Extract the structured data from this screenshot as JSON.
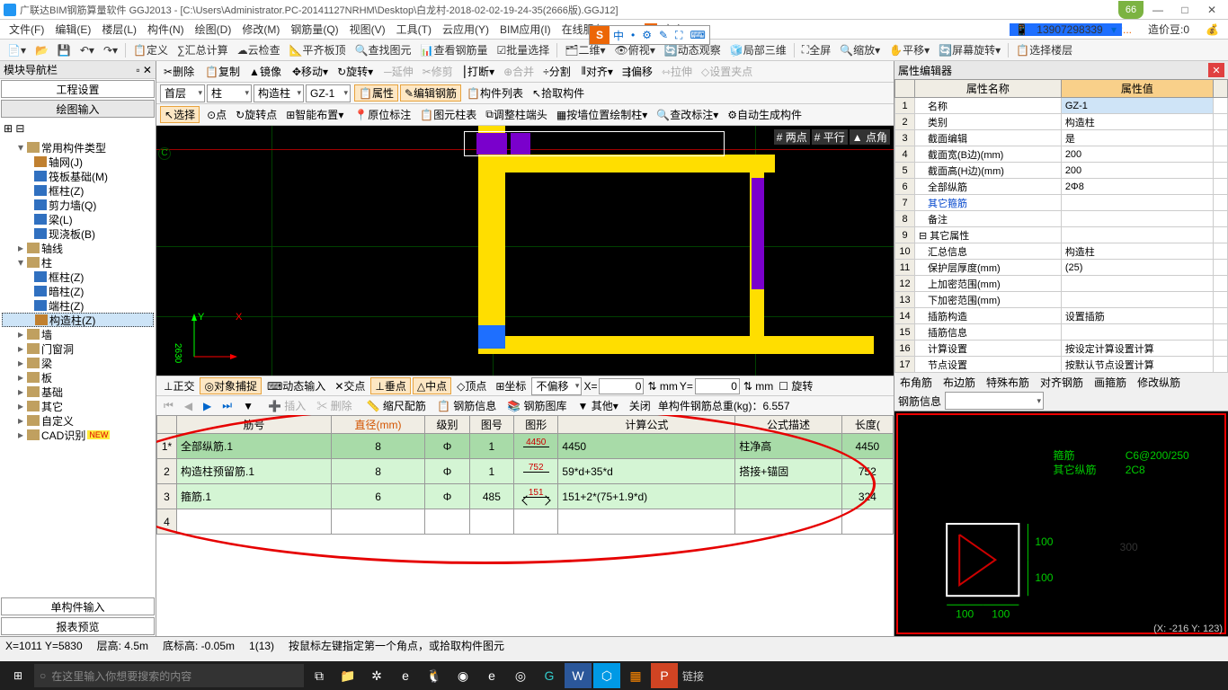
{
  "title": "广联达BIM钢筋算量软件 GGJ2013 - [C:\\Users\\Administrator.PC-20141127NRHM\\Desktop\\白龙村-2018-02-02-19-24-35(2666版).GGJ12]",
  "badge": "66",
  "menu": [
    "文件(F)",
    "编辑(E)",
    "楼层(L)",
    "构件(N)",
    "绘图(D)",
    "修改(M)",
    "钢筋量(Q)",
    "视图(V)",
    "工具(T)",
    "云应用(Y)",
    "BIM应用(I)",
    "在线服务(S)"
  ],
  "menuRight": {
    "orange": "为什么图纸导入不显示...",
    "user": "13907298339",
    "bean": "造价豆:0"
  },
  "tb1": [
    "定义",
    "汇总计算",
    "云检查",
    "平齐板顶",
    "查找图元",
    "查看钢筋量",
    "批量选择",
    "二维",
    "俯视",
    "动态观察",
    "局部三维",
    "全屏",
    "缩放",
    "平移",
    "屏幕旋转",
    "选择楼层"
  ],
  "leftHdr": "模块导航栏",
  "leftTabs": [
    "工程设置",
    "绘图输入"
  ],
  "tree": [
    {
      "t": "常用构件类型",
      "l": 1,
      "exp": "▾"
    },
    {
      "t": "轴网(J)",
      "l": 2,
      "c": "#c08030"
    },
    {
      "t": "筏板基础(M)",
      "l": 2,
      "c": "#3070c0"
    },
    {
      "t": "框柱(Z)",
      "l": 2,
      "c": "#3070c0"
    },
    {
      "t": "剪力墙(Q)",
      "l": 2,
      "c": "#3070c0"
    },
    {
      "t": "梁(L)",
      "l": 2,
      "c": "#3070c0"
    },
    {
      "t": "现浇板(B)",
      "l": 2,
      "c": "#3070c0"
    },
    {
      "t": "轴线",
      "l": 1,
      "exp": "▸"
    },
    {
      "t": "柱",
      "l": 1,
      "exp": "▾"
    },
    {
      "t": "框柱(Z)",
      "l": 2,
      "c": "#3070c0"
    },
    {
      "t": "暗柱(Z)",
      "l": 2,
      "c": "#3070c0"
    },
    {
      "t": "端柱(Z)",
      "l": 2,
      "c": "#3070c0"
    },
    {
      "t": "构造柱(Z)",
      "l": 2,
      "c": "#c08030",
      "sel": true
    },
    {
      "t": "墙",
      "l": 1,
      "exp": "▸"
    },
    {
      "t": "门窗洞",
      "l": 1,
      "exp": "▸"
    },
    {
      "t": "梁",
      "l": 1,
      "exp": "▸"
    },
    {
      "t": "板",
      "l": 1,
      "exp": "▸"
    },
    {
      "t": "基础",
      "l": 1,
      "exp": "▸"
    },
    {
      "t": "其它",
      "l": 1,
      "exp": "▸"
    },
    {
      "t": "自定义",
      "l": 1,
      "exp": "▸"
    },
    {
      "t": "CAD识别",
      "l": 1,
      "exp": "▸",
      "new": true
    }
  ],
  "botTabs": [
    "单构件输入",
    "报表预览"
  ],
  "ctb1": [
    "删除",
    "复制",
    "镜像",
    "移动",
    "旋转",
    "延伸",
    "修剪",
    "打断",
    "合并",
    "分割",
    "对齐",
    "偏移",
    "拉伸",
    "设置夹点"
  ],
  "combos": {
    "floor": "首层",
    "cat": "柱",
    "type": "构造柱",
    "name": "GZ-1"
  },
  "ctb2": [
    "属性",
    "编辑钢筋",
    "构件列表",
    "拾取构件"
  ],
  "ctb3": [
    "选择",
    "点",
    "旋转点",
    "智能布置",
    "原位标注",
    "图元柱表",
    "调整柱端头",
    "按墙位置绘制柱",
    "查改标注",
    "自动生成构件"
  ],
  "snap": [
    "正交",
    "对象捕捉",
    "动态输入",
    "交点",
    "垂点",
    "中点",
    "顶点",
    "坐标"
  ],
  "snapCombo": "不偏移",
  "coords": {
    "x": "0",
    "y": "0"
  },
  "viewR": [
    "两点",
    "平行",
    "点角"
  ],
  "rbar": [
    "插入",
    "删除",
    "缩尺配筋",
    "钢筋信息",
    "钢筋图库",
    "其他",
    "关闭"
  ],
  "weight": "单构件钢筋总重(kg)：6.557",
  "rth": [
    "",
    "筋号",
    "直径(mm)",
    "级别",
    "图号",
    "图形",
    "计算公式",
    "公式描述",
    "长度("
  ],
  "rrows": [
    {
      "n": "1*",
      "a": "全部纵筋.1",
      "b": "8",
      "c": "Φ",
      "d": "1",
      "e": "4450",
      "f": "4450",
      "g": "柱净高",
      "h": "4450"
    },
    {
      "n": "2",
      "a": "构造柱预留筋.1",
      "b": "8",
      "c": "Φ",
      "d": "1",
      "e": "752",
      "f": "59*d+35*d",
      "g": "搭接+锚固",
      "h": "752"
    },
    {
      "n": "3",
      "a": "箍筋.1",
      "b": "6",
      "c": "Φ",
      "d": "485",
      "e": "151",
      "f": "151+2*(75+1.9*d)",
      "g": "",
      "h": "324"
    },
    {
      "n": "4",
      "a": "",
      "b": "",
      "c": "",
      "d": "",
      "e": "",
      "f": "",
      "g": "",
      "h": ""
    }
  ],
  "propHdr": "属性编辑器",
  "propTh": [
    "属性名称",
    "属性值"
  ],
  "props": [
    {
      "n": "1",
      "k": "名称",
      "v": "GZ-1",
      "sel": true
    },
    {
      "n": "2",
      "k": "类别",
      "v": "构造柱"
    },
    {
      "n": "3",
      "k": "截面编辑",
      "v": "是"
    },
    {
      "n": "4",
      "k": "截面宽(B边)(mm)",
      "v": "200"
    },
    {
      "n": "5",
      "k": "截面高(H边)(mm)",
      "v": "200"
    },
    {
      "n": "6",
      "k": "全部纵筋",
      "v": "2Φ8"
    },
    {
      "n": "7",
      "k": "其它箍筋",
      "v": "",
      "blue": true
    },
    {
      "n": "8",
      "k": "备注",
      "v": ""
    },
    {
      "n": "9",
      "k": "其它属性",
      "v": "",
      "grp": true
    },
    {
      "n": "10",
      "k": "汇总信息",
      "v": "构造柱"
    },
    {
      "n": "11",
      "k": "保护层厚度(mm)",
      "v": "(25)"
    },
    {
      "n": "12",
      "k": "上加密范围(mm)",
      "v": ""
    },
    {
      "n": "13",
      "k": "下加密范围(mm)",
      "v": ""
    },
    {
      "n": "14",
      "k": "插筋构造",
      "v": "设置插筋"
    },
    {
      "n": "15",
      "k": "插筋信息",
      "v": ""
    },
    {
      "n": "16",
      "k": "计算设置",
      "v": "按设定计算设置计算"
    },
    {
      "n": "17",
      "k": "节点设置",
      "v": "按默认节点设置计算"
    }
  ],
  "xtabs": [
    "布角筋",
    "布边筋",
    "特殊布筋",
    "对齐钢筋",
    "画箍筋",
    "修改纵筋"
  ],
  "xbar": "钢筋信息",
  "xlabels": {
    "a": "箍筋",
    "b": "其它纵筋",
    "c": "C6@200/250",
    "d": "2C8",
    "h1": "100",
    "h2": "100",
    "w1": "100",
    "w2": "100"
  },
  "status": {
    "xy": "X=1011 Y=5830",
    "fh": "层高: 4.5m",
    "bh": "底标高: -0.05m",
    "ln": "1(13)",
    "tip": "按鼠标左键指定第一个角点，或拾取构件图元"
  },
  "xstatus": "(X: -216 Y: 123)",
  "searchPh": "在这里输入你想要搜索的内容",
  "ime": [
    "中",
    "•",
    "⚙",
    "✎",
    "⛶",
    "⌨"
  ],
  "tb_links": "链接"
}
